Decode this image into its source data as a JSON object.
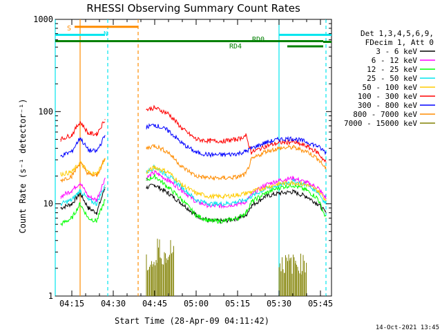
{
  "chart_data": {
    "type": "line",
    "title": "RHESSI Observing Summary Count Rates",
    "xlabel": "Start Time (28-Apr-09 04:11:42)",
    "ylabel": "Count Rate (s⁻¹ detector⁻¹)",
    "y_scale": "log",
    "ylim": [
      1,
      1000
    ],
    "xlim": [
      "04:09",
      "05:49"
    ],
    "y_ticks": [
      1,
      10,
      100,
      1000
    ],
    "y_tick_labels": [
      "1",
      "10",
      "100",
      "1000"
    ],
    "x_ticks": [
      "04:15",
      "04:30",
      "04:45",
      "05:00",
      "05:15",
      "05:30",
      "05:45"
    ],
    "grid": false,
    "legend_position": "right",
    "legend_header": [
      "Det 1,3,4,5,6,9,",
      "FDecim 1, Att 0"
    ],
    "footer_date": "14-Oct-2021 13:45",
    "flag_labels": {
      "s": "S",
      "n": "N",
      "rd0": "RD0",
      "rd4": "RD4"
    },
    "flags": [
      {
        "label": "S",
        "color": "#ff8c00",
        "start": "04:16",
        "end": "04:39",
        "level": 830
      },
      {
        "label": "N",
        "color": "#00e5ee",
        "start": "04:09",
        "end": "04:27",
        "level": 680
      },
      {
        "label": "RD0",
        "color": "#008000",
        "start": "04:09",
        "end": "05:46",
        "level": 580
      },
      {
        "label": "RD4",
        "color": "#008000",
        "start": "05:33",
        "end": "05:46",
        "level": 510
      }
    ],
    "vertical_markers": [
      {
        "time": "04:09",
        "color": "#00e5ee",
        "style": "solid"
      },
      {
        "time": "04:18",
        "color": "#ff8c00",
        "style": "solid"
      },
      {
        "time": "04:28",
        "color": "#00e5ee",
        "style": "dashed"
      },
      {
        "time": "04:39",
        "color": "#ff8c00",
        "style": "dashed"
      },
      {
        "time": "05:30",
        "color": "#00e5ee",
        "style": "solid"
      },
      {
        "time": "05:47",
        "color": "#00e5ee",
        "style": "dashed"
      }
    ],
    "data_gap": [
      "04:28",
      "04:42"
    ],
    "series": [
      {
        "name": "3 - 6 keV",
        "color": "#000000",
        "x": [
          "04:11",
          "04:15",
          "04:18",
          "04:21",
          "04:24",
          "04:27",
          "04:42",
          "04:45",
          "04:50",
          "04:55",
          "05:00",
          "05:05",
          "05:10",
          "05:15",
          "05:18",
          "05:20",
          "05:25",
          "05:30",
          "05:35",
          "05:40",
          "05:44",
          "05:47"
        ],
        "values": [
          9,
          10,
          13,
          9,
          8,
          15,
          15,
          16,
          13,
          10,
          7.5,
          6.5,
          6.5,
          7,
          7.5,
          9.5,
          12,
          13,
          13.5,
          12,
          10,
          8
        ]
      },
      {
        "name": "6 - 12 keV",
        "color": "#ff00ff",
        "x": [
          "04:11",
          "04:15",
          "04:18",
          "04:21",
          "04:24",
          "04:27",
          "04:42",
          "04:45",
          "04:50",
          "04:55",
          "05:00",
          "05:05",
          "05:10",
          "05:15",
          "05:18",
          "05:20",
          "05:25",
          "05:30",
          "05:35",
          "05:40",
          "05:44",
          "05:47"
        ],
        "values": [
          12,
          14,
          17,
          12,
          11,
          19,
          19,
          22,
          18,
          14,
          10.5,
          9.5,
          9.5,
          10,
          10.5,
          12.5,
          16,
          18,
          19,
          17,
          15,
          11.5
        ]
      },
      {
        "name": "12 - 25 keV",
        "color": "#00ff00",
        "x": [
          "04:11",
          "04:15",
          "04:18",
          "04:21",
          "04:24",
          "04:27",
          "04:42",
          "04:45",
          "04:50",
          "04:55",
          "05:00",
          "05:05",
          "05:10",
          "05:15",
          "05:18",
          "05:20",
          "05:25",
          "05:30",
          "05:35",
          "05:40",
          "05:44",
          "05:47"
        ],
        "values": [
          6,
          7,
          10,
          7,
          6.5,
          11,
          18,
          20,
          15,
          11,
          7.5,
          6.5,
          6.5,
          7,
          8,
          10.5,
          13,
          15,
          16,
          14,
          11.5,
          7
        ]
      },
      {
        "name": "25 - 50 keV",
        "color": "#00e5ee",
        "x": [
          "04:11",
          "04:15",
          "04:18",
          "04:21",
          "04:24",
          "04:27",
          "04:42",
          "04:45",
          "04:50",
          "04:55",
          "05:00",
          "05:05",
          "05:10",
          "05:15",
          "05:18",
          "05:20",
          "05:25",
          "05:30",
          "05:35",
          "05:40",
          "05:44",
          "05:47"
        ],
        "values": [
          10,
          11,
          14,
          11,
          10,
          16,
          22,
          25,
          20,
          15,
          11,
          10,
          10,
          10.5,
          11,
          12,
          14.5,
          16,
          17.5,
          16,
          13.5,
          10
        ]
      },
      {
        "name": "50 - 100 keV",
        "color": "#ffcc00",
        "x": [
          "04:11",
          "04:15",
          "04:18",
          "04:21",
          "04:24",
          "04:27",
          "04:42",
          "04:45",
          "04:50",
          "04:55",
          "05:00",
          "05:05",
          "05:10",
          "05:15",
          "05:18",
          "05:20",
          "05:25",
          "05:30",
          "05:35",
          "05:40",
          "05:44",
          "05:47"
        ],
        "values": [
          21,
          22,
          28,
          22,
          21,
          30,
          22,
          25,
          22,
          16,
          13,
          12,
          12,
          12.5,
          13,
          13.5,
          15,
          16.5,
          17,
          16,
          14,
          11
        ]
      },
      {
        "name": "100 - 300 keV",
        "color": "#ff0000",
        "x": [
          "04:11",
          "04:15",
          "04:18",
          "04:21",
          "04:24",
          "04:27",
          "04:42",
          "04:45",
          "04:50",
          "04:55",
          "05:00",
          "05:05",
          "05:10",
          "05:15",
          "05:18",
          "05:20",
          "05:25",
          "05:30",
          "05:35",
          "05:40",
          "05:44",
          "05:47"
        ],
        "values": [
          50,
          56,
          78,
          58,
          57,
          82,
          105,
          110,
          95,
          65,
          50,
          48,
          48,
          50,
          55,
          36,
          42,
          46,
          47,
          42,
          36,
          28
        ]
      },
      {
        "name": "300 - 800 keV",
        "color": "#0000ff",
        "x": [
          "04:11",
          "04:15",
          "04:18",
          "04:21",
          "04:24",
          "04:27",
          "04:42",
          "04:45",
          "04:50",
          "04:55",
          "05:00",
          "05:05",
          "05:10",
          "05:15",
          "05:18",
          "05:20",
          "05:25",
          "05:30",
          "05:35",
          "05:40",
          "05:44",
          "05:47"
        ],
        "values": [
          33,
          37,
          52,
          38,
          37,
          55,
          68,
          72,
          62,
          45,
          36,
          34,
          34,
          35,
          37,
          40,
          46,
          50,
          51,
          47,
          42,
          36
        ]
      },
      {
        "name": "800 - 7000 keV",
        "color": "#ff8c00",
        "x": [
          "04:11",
          "04:15",
          "04:18",
          "04:21",
          "04:24",
          "04:27",
          "04:42",
          "04:45",
          "04:50",
          "04:55",
          "05:00",
          "05:05",
          "05:10",
          "05:15",
          "05:18",
          "05:20",
          "05:25",
          "05:30",
          "05:35",
          "05:40",
          "05:44",
          "05:47"
        ],
        "values": [
          18,
          20,
          28,
          21,
          20,
          31,
          40,
          43,
          36,
          25,
          20,
          19,
          19,
          19.5,
          21,
          30,
          37,
          40,
          41,
          37,
          31,
          24
        ]
      },
      {
        "name": "7000 - 15000 keV",
        "color": "#808000",
        "x": [
          "04:42",
          "04:44",
          "04:46",
          "04:47",
          "04:49",
          "04:50",
          "04:52",
          "05:30",
          "05:32",
          "05:34",
          "05:36",
          "05:38",
          "05:40"
        ],
        "values": [
          2,
          2,
          3,
          2.5,
          2,
          3,
          2,
          2,
          2,
          2,
          2,
          2,
          2
        ]
      }
    ]
  }
}
